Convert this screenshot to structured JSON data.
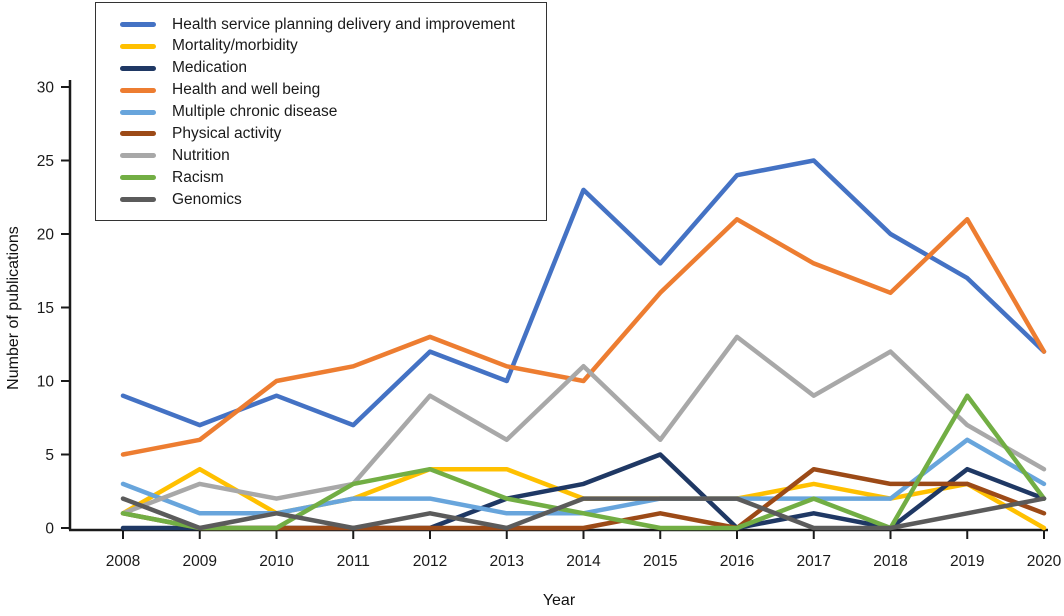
{
  "chart_data": {
    "type": "line",
    "title": "",
    "xlabel": "Year",
    "ylabel": "Number of publications",
    "x": [
      2008,
      2009,
      2010,
      2011,
      2012,
      2013,
      2014,
      2015,
      2016,
      2017,
      2018,
      2019,
      2020
    ],
    "ylim": [
      0,
      30
    ],
    "yticks": [
      0,
      5,
      10,
      15,
      20,
      25,
      30
    ],
    "grid": false,
    "legend_position": "upper-left",
    "series": [
      {
        "name": "Health service planning delivery and improvement",
        "color": "#4472C4",
        "values": [
          9,
          7,
          9,
          7,
          12,
          10,
          23,
          18,
          24,
          25,
          20,
          17,
          12
        ]
      },
      {
        "name": "Mortality/morbidity",
        "color": "#FFC000",
        "values": [
          1,
          4,
          1,
          2,
          4,
          4,
          2,
          2,
          2,
          3,
          2,
          3,
          0
        ]
      },
      {
        "name": "Medication",
        "color": "#1F3864",
        "values": [
          0,
          0,
          0,
          0,
          0,
          2,
          3,
          5,
          0,
          1,
          0,
          4,
          2
        ]
      },
      {
        "name": "Health and well being",
        "color": "#ED7D31",
        "values": [
          5,
          6,
          10,
          11,
          13,
          11,
          10,
          16,
          21,
          18,
          16,
          21,
          12
        ]
      },
      {
        "name": "Multiple chronic disease",
        "color": "#68A5DC",
        "values": [
          3,
          1,
          1,
          2,
          2,
          1,
          1,
          2,
          2,
          2,
          2,
          6,
          3
        ]
      },
      {
        "name": "Physical activity",
        "color": "#9C4A17",
        "values": [
          1,
          0,
          0,
          0,
          0,
          0,
          0,
          1,
          0,
          4,
          3,
          3,
          1
        ]
      },
      {
        "name": "Nutrition",
        "color": "#A8A8A8",
        "values": [
          1,
          3,
          2,
          3,
          9,
          6,
          11,
          6,
          13,
          9,
          12,
          7,
          4
        ]
      },
      {
        "name": "Racism",
        "color": "#72AE44",
        "values": [
          1,
          0,
          0,
          3,
          4,
          2,
          1,
          0,
          0,
          2,
          0,
          9,
          2
        ]
      },
      {
        "name": "Genomics",
        "color": "#5B5B5B",
        "values": [
          2,
          0,
          1,
          0,
          1,
          0,
          2,
          2,
          2,
          0,
          0,
          1,
          2
        ]
      }
    ]
  }
}
